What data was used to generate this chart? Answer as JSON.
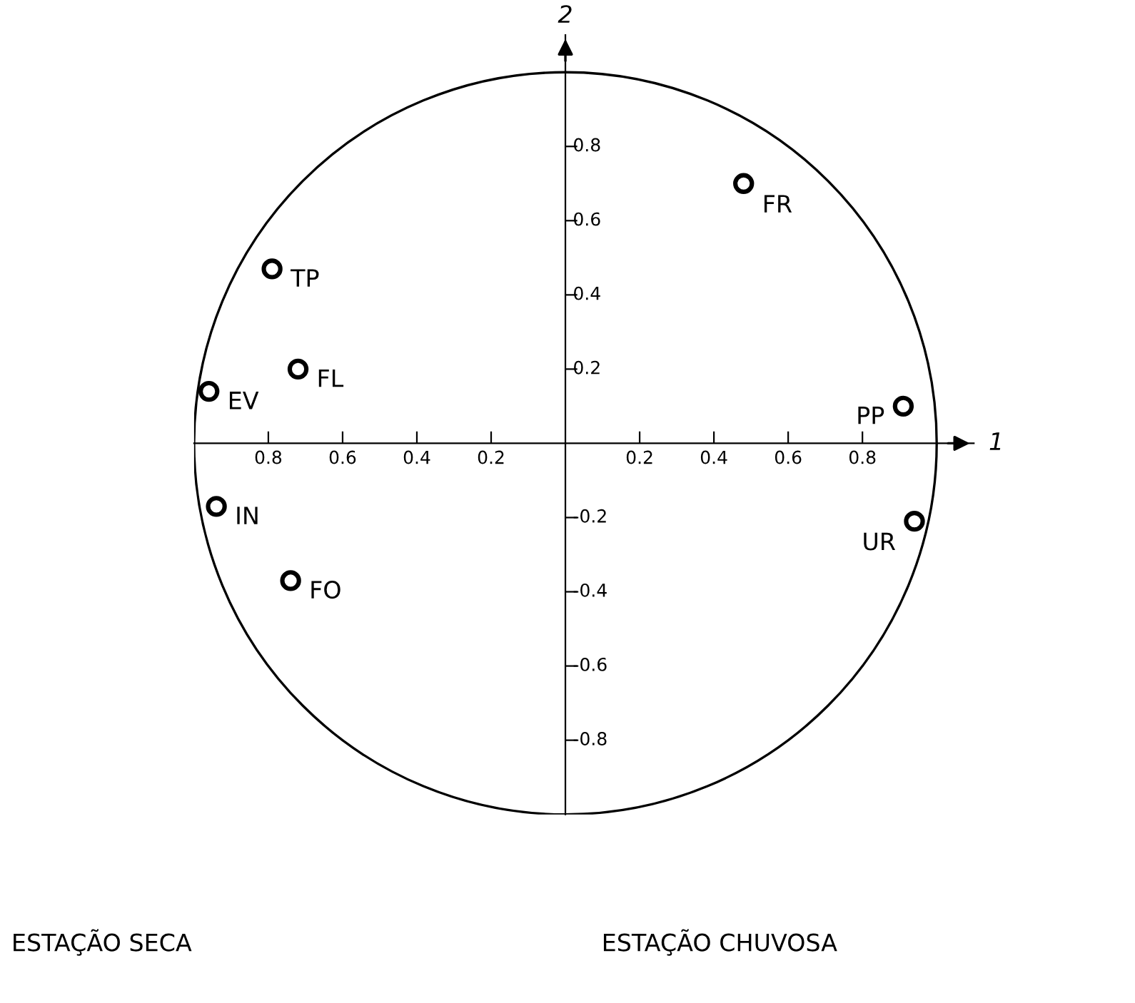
{
  "chart_data": {
    "type": "scatter",
    "xlabel": "1",
    "ylabel": "2",
    "x": [
      0.48,
      -0.79,
      -0.72,
      -0.96,
      0.91,
      0.94,
      -0.94,
      -0.74
    ],
    "values": [
      0.7,
      0.47,
      0.2,
      0.14,
      0.1,
      -0.21,
      -0.17,
      -0.37
    ],
    "color": "#000000",
    "marker": "circle",
    "xlim": [
      -1,
      1.1
    ],
    "ylim": [
      -1,
      1.1
    ],
    "xticks": [
      {
        "value": -0.8,
        "label": "0.8"
      },
      {
        "value": -0.6,
        "label": "0.6"
      },
      {
        "value": -0.4,
        "label": "0.4"
      },
      {
        "value": -0.2,
        "label": "0.2"
      },
      0.2,
      0.4,
      0.6,
      0.8
    ],
    "yticks": [
      -0.8,
      -0.6,
      -0.4,
      -0.2,
      0.2,
      0.4,
      0.6,
      0.8
    ],
    "grid": false,
    "annotations": [
      {
        "text": "FR",
        "x": 0.48,
        "y": 0.7
      },
      {
        "text": "TP",
        "x": -0.79,
        "y": 0.47
      },
      {
        "text": "FL",
        "x": -0.72,
        "y": 0.2
      },
      {
        "text": "EV",
        "x": -0.96,
        "y": 0.14
      },
      {
        "text": "PP",
        "x": 0.91,
        "y": 0.1
      },
      {
        "text": "UR",
        "x": 0.94,
        "y": -0.21
      },
      {
        "text": "IN",
        "x": -0.94,
        "y": -0.17
      },
      {
        "text": "FO",
        "x": -0.74,
        "y": -0.37
      },
      "ESTAÇÃO SECA",
      "ESTAÇÃO CHUVOSA"
    ]
  }
}
